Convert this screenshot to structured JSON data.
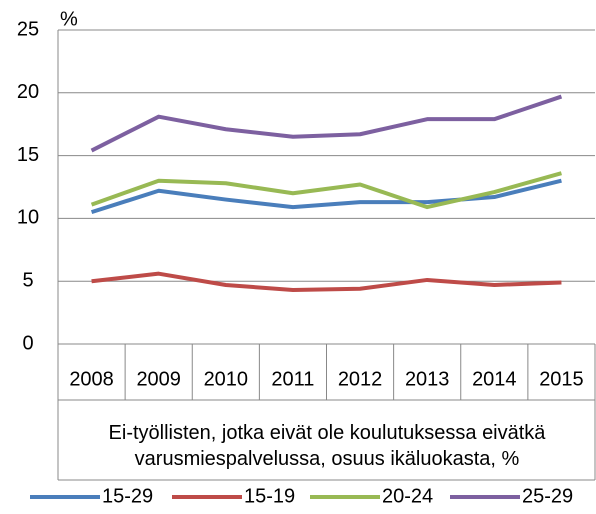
{
  "chart_data": {
    "type": "line",
    "y_unit": "%",
    "x_label": "Ei-työllisten, jotka eivät ole koulutuksessa eivätkä varusmiespalvelussa, osuus ikäluokasta, %",
    "categories": [
      "2008",
      "2009",
      "2010",
      "2011",
      "2012",
      "2013",
      "2014",
      "2015"
    ],
    "series": [
      {
        "name": "15-29",
        "color": "#4a7ebb",
        "values": [
          10.5,
          12.2,
          11.5,
          10.9,
          11.3,
          11.3,
          11.7,
          13.0
        ]
      },
      {
        "name": "15-19",
        "color": "#be4b48",
        "values": [
          5.0,
          5.6,
          4.7,
          4.3,
          4.4,
          5.1,
          4.7,
          4.9
        ]
      },
      {
        "name": "20-24",
        "color": "#98b954",
        "values": [
          11.1,
          13.0,
          12.8,
          12.0,
          12.7,
          10.9,
          12.1,
          13.6
        ]
      },
      {
        "name": "25-29",
        "color": "#7d60a0",
        "values": [
          15.4,
          18.1,
          17.1,
          16.5,
          16.7,
          17.9,
          17.9,
          19.7
        ]
      }
    ],
    "ylim": [
      0,
      25
    ],
    "yticks": [
      0,
      5,
      10,
      15,
      20,
      25
    ],
    "grid": true,
    "legend": "bottom"
  }
}
